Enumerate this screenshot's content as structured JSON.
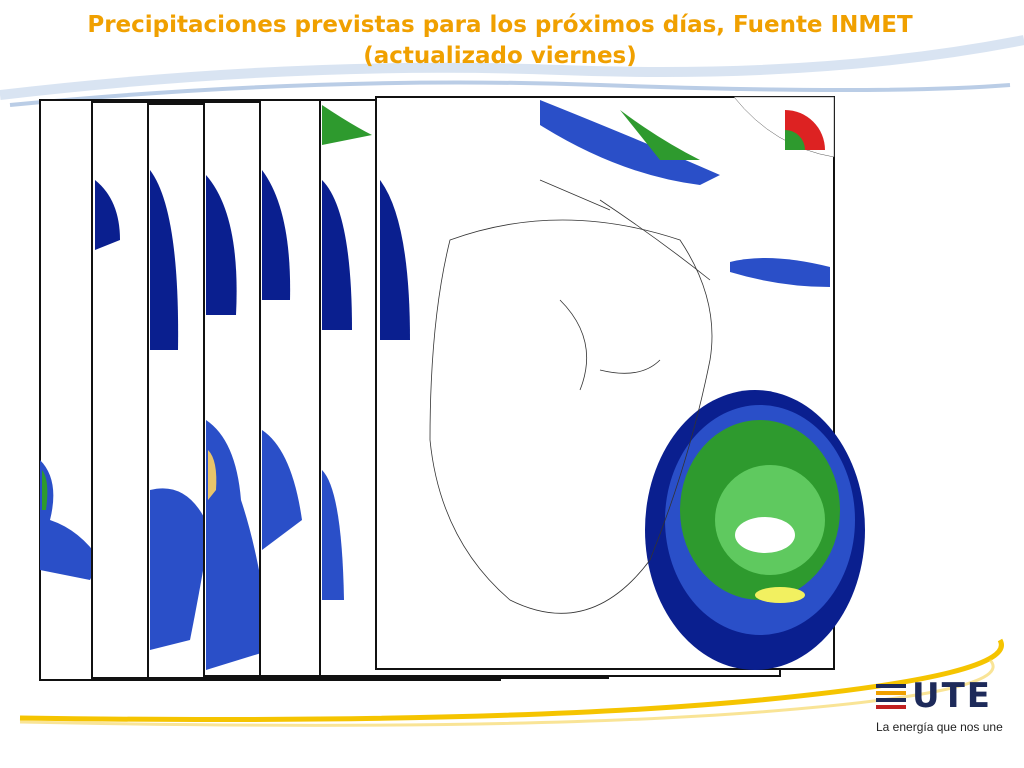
{
  "header": {
    "title": "Precipitaciones previstas para los próximos días, Fuente INMET",
    "subtitle": "(actualizado viernes)"
  },
  "logo": {
    "name": "UTE",
    "tagline": "La energía que nos une"
  }
}
